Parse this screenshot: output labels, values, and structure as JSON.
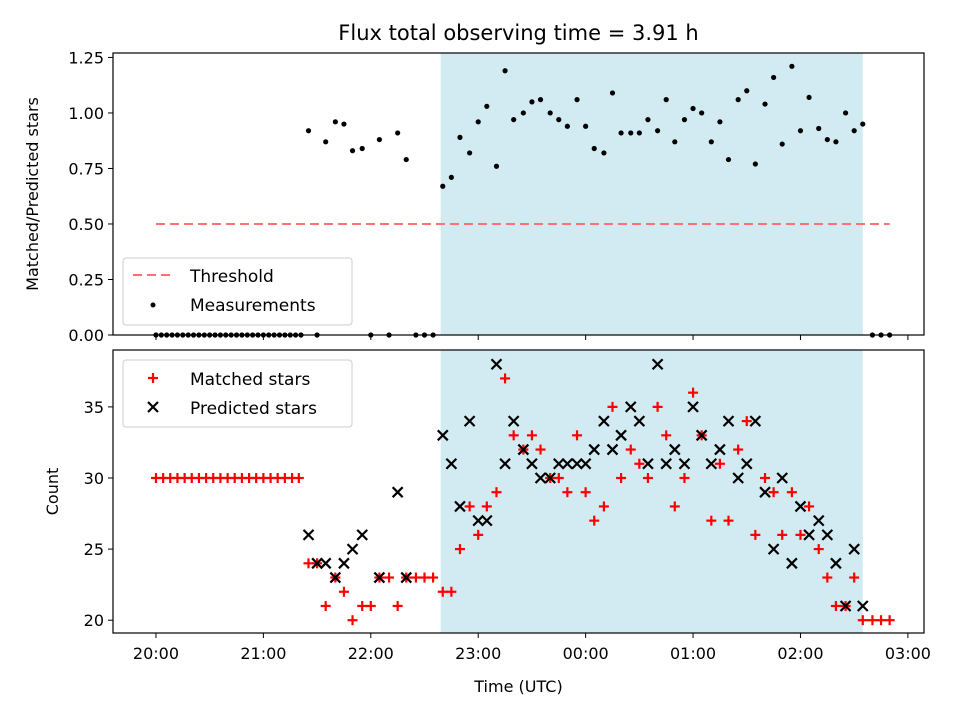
{
  "chart_data": [
    {
      "type": "scatter",
      "title": "Flux total observing time = 3.91 h",
      "xlabel": "",
      "ylabel": "Matched/Predicted stars",
      "xlim": [
        -0.4,
        7.15
      ],
      "ylim": [
        0.0,
        1.27
      ],
      "yticks": [
        "0.00",
        "0.25",
        "0.50",
        "0.75",
        "1.00",
        "1.25"
      ],
      "ytick_values": [
        0,
        0.25,
        0.5,
        0.75,
        1.0,
        1.25
      ],
      "highlight_region": [
        2.65,
        6.58
      ],
      "threshold": {
        "name": "Threshold",
        "value": 0.5,
        "x": [
          0.0,
          6.83
        ],
        "color": "#ff7070"
      },
      "series": [
        {
          "name": "Measurements",
          "color": "#000000",
          "x": [
            0.0,
            0.05,
            0.1,
            0.15,
            0.2,
            0.25,
            0.3,
            0.35,
            0.4,
            0.45,
            0.5,
            0.55,
            0.6,
            0.65,
            0.7,
            0.75,
            0.8,
            0.85,
            0.9,
            0.95,
            1.0,
            1.05,
            1.1,
            1.15,
            1.2,
            1.25,
            1.3,
            1.35,
            1.42,
            1.5,
            1.58,
            1.67,
            1.75,
            1.83,
            1.92,
            2.0,
            2.08,
            2.17,
            2.25,
            2.33,
            2.42,
            2.5,
            2.58,
            2.67,
            2.75,
            2.83,
            2.92,
            3.0,
            3.08,
            3.17,
            3.25,
            3.33,
            3.42,
            3.5,
            3.58,
            3.67,
            3.75,
            3.83,
            3.92,
            4.0,
            4.08,
            4.17,
            4.25,
            4.33,
            4.42,
            4.5,
            4.58,
            4.67,
            4.75,
            4.83,
            4.92,
            5.0,
            5.08,
            5.17,
            5.25,
            5.33,
            5.42,
            5.5,
            5.58,
            5.67,
            5.75,
            5.83,
            5.92,
            6.0,
            6.08,
            6.17,
            6.25,
            6.33,
            6.42,
            6.5,
            6.58,
            6.67,
            6.75,
            6.83
          ],
          "y": [
            0,
            0,
            0,
            0,
            0,
            0,
            0,
            0,
            0,
            0,
            0,
            0,
            0,
            0,
            0,
            0,
            0,
            0,
            0,
            0,
            0,
            0,
            0,
            0,
            0,
            0,
            0,
            0,
            0.92,
            0,
            0.87,
            0.96,
            0.95,
            0.83,
            0.84,
            0,
            0.88,
            0,
            0.91,
            0.79,
            0,
            0,
            0,
            0.67,
            0.71,
            0.89,
            0.82,
            0.96,
            1.03,
            0.76,
            1.19,
            0.97,
            1.0,
            1.05,
            1.06,
            1.0,
            0.97,
            0.94,
            1.06,
            0.94,
            0.84,
            0.82,
            1.09,
            0.91,
            0.91,
            0.91,
            0.97,
            0.92,
            1.06,
            0.87,
            0.97,
            1.02,
            1.0,
            0.87,
            0.96,
            0.79,
            1.06,
            1.1,
            0.77,
            1.04,
            1.16,
            0.86,
            1.21,
            0.92,
            1.07,
            0.93,
            0.88,
            0.87,
            1.0,
            0.92,
            0.95,
            0,
            0,
            0
          ]
        }
      ]
    },
    {
      "type": "scatter",
      "title": "",
      "xlabel": "Time (UTC)",
      "ylabel": "Count",
      "xlim": [
        -0.4,
        7.15
      ],
      "ylim": [
        19.1,
        39.0
      ],
      "yticks": [
        "20",
        "25",
        "30",
        "35"
      ],
      "ytick_values": [
        20,
        25,
        30,
        35
      ],
      "xticks": [
        "20:00",
        "21:00",
        "22:00",
        "23:00",
        "00:00",
        "01:00",
        "02:00",
        "03:00"
      ],
      "xtick_values": [
        0,
        1,
        2,
        3,
        4,
        5,
        6,
        7
      ],
      "highlight_region": [
        2.65,
        6.58
      ],
      "series": [
        {
          "name": "Matched stars",
          "color": "#ff0000",
          "marker": "plus",
          "x": [
            0.0,
            0.067,
            0.133,
            0.2,
            0.267,
            0.333,
            0.4,
            0.467,
            0.533,
            0.6,
            0.667,
            0.733,
            0.8,
            0.867,
            0.933,
            1.0,
            1.067,
            1.133,
            1.2,
            1.267,
            1.33,
            1.42,
            1.5,
            1.58,
            1.67,
            1.75,
            1.83,
            1.92,
            2.0,
            2.08,
            2.17,
            2.25,
            2.33,
            2.42,
            2.5,
            2.58,
            2.67,
            2.75,
            2.83,
            2.92,
            3.0,
            3.08,
            3.17,
            3.25,
            3.33,
            3.42,
            3.5,
            3.58,
            3.67,
            3.75,
            3.83,
            3.92,
            4.0,
            4.08,
            4.17,
            4.25,
            4.33,
            4.42,
            4.5,
            4.58,
            4.67,
            4.75,
            4.83,
            4.92,
            5.0,
            5.08,
            5.17,
            5.25,
            5.33,
            5.42,
            5.5,
            5.58,
            5.67,
            5.75,
            5.83,
            5.92,
            6.0,
            6.08,
            6.17,
            6.25,
            6.33,
            6.42,
            6.5,
            6.58,
            6.67,
            6.75,
            6.83
          ],
          "y": [
            30,
            30,
            30,
            30,
            30,
            30,
            30,
            30,
            30,
            30,
            30,
            30,
            30,
            30,
            30,
            30,
            30,
            30,
            30,
            30,
            30,
            24,
            24,
            21,
            23,
            22,
            20,
            21,
            21,
            23,
            23,
            21,
            23,
            23,
            23,
            23,
            22,
            22,
            25,
            28,
            26,
            28,
            29,
            37,
            33,
            32,
            33,
            32,
            30,
            30,
            29,
            33,
            29,
            27,
            28,
            35,
            30,
            32,
            31,
            30,
            35,
            33,
            28,
            30,
            36,
            33,
            27,
            31,
            27,
            32,
            34,
            26,
            30,
            29,
            26,
            29,
            26,
            28,
            25,
            23,
            21,
            21,
            23,
            20,
            20,
            20,
            20
          ]
        },
        {
          "name": "Predicted stars",
          "color": "#000000",
          "marker": "x",
          "x": [
            1.42,
            1.5,
            1.58,
            1.67,
            1.75,
            1.83,
            1.92,
            2.08,
            2.25,
            2.33,
            2.67,
            2.75,
            2.83,
            2.92,
            3.0,
            3.08,
            3.17,
            3.25,
            3.33,
            3.42,
            3.5,
            3.58,
            3.67,
            3.75,
            3.83,
            3.92,
            4.0,
            4.08,
            4.17,
            4.25,
            4.33,
            4.42,
            4.5,
            4.58,
            4.67,
            4.75,
            4.83,
            4.92,
            5.0,
            5.08,
            5.17,
            5.25,
            5.33,
            5.42,
            5.5,
            5.58,
            5.67,
            5.75,
            5.83,
            5.92,
            6.0,
            6.08,
            6.17,
            6.25,
            6.33,
            6.42,
            6.5,
            6.58
          ],
          "y": [
            26,
            24,
            24,
            23,
            24,
            25,
            26,
            23,
            29,
            23,
            33,
            31,
            28,
            34,
            27,
            27,
            38,
            31,
            34,
            32,
            31,
            30,
            30,
            31,
            31,
            31,
            31,
            32,
            34,
            32,
            33,
            35,
            34,
            31,
            38,
            31,
            32,
            31,
            35,
            33,
            31,
            32,
            34,
            30,
            31,
            34,
            29,
            25,
            30,
            24,
            28,
            26,
            27,
            26,
            24,
            21,
            25,
            21
          ]
        }
      ]
    }
  ]
}
